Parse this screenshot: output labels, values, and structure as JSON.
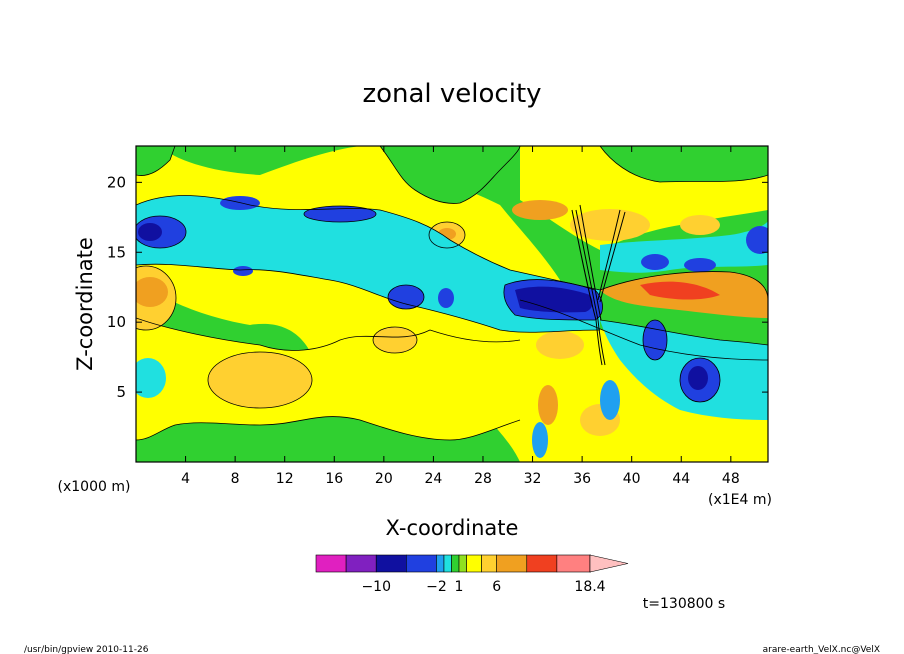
{
  "chart_data": {
    "type": "heatmap",
    "title": "zonal velocity",
    "xlabel": "X-coordinate",
    "ylabel": "Z-coordinate",
    "x_unit_left": "(x1000 m)",
    "x_unit_right": "(x1E4 m)",
    "x_ticks": [
      "4",
      "8",
      "12",
      "16",
      "20",
      "24",
      "28",
      "32",
      "36",
      "40",
      "44",
      "48"
    ],
    "y_ticks": [
      "5",
      "10",
      "15",
      "20"
    ],
    "xlim": [
      0,
      51
    ],
    "ylim": [
      0,
      22.6
    ],
    "colorbar": {
      "levels": [
        -18,
        -14,
        -10,
        -6,
        -2,
        -1,
        0,
        1,
        2,
        4,
        6,
        10,
        14,
        18.4
      ],
      "colors": [
        "#e020c0",
        "#8020c0",
        "#1010a0",
        "#2040e0",
        "#20a0f0",
        "#20e0e0",
        "#30d030",
        "#90e020",
        "#ffff00",
        "#ffd030",
        "#f0a020",
        "#f04020",
        "#ff8080",
        "#ffc0c0"
      ],
      "labels": [
        "-10",
        "-2",
        "1",
        "6",
        "18.4"
      ]
    },
    "features": [
      {
        "x": 37.5,
        "z": 12.2,
        "u": -14,
        "kind": "negative core"
      },
      {
        "x": 44.5,
        "z": 12.0,
        "u": 10,
        "kind": "positive core"
      },
      {
        "x": 0.5,
        "z": 16.8,
        "u": -10,
        "kind": "negative core"
      },
      {
        "x": 47.5,
        "z": 6.0,
        "u": -10,
        "kind": "negative core"
      },
      {
        "x": 8.5,
        "z": 6.2,
        "u": 4,
        "kind": "positive core"
      },
      {
        "x": 1.0,
        "z": 12.5,
        "u": 4,
        "kind": "positive core"
      }
    ]
  },
  "time_label": "t=130800 s",
  "footer_left": "/usr/bin/gpview  2010-11-26",
  "footer_right": "arare-earth_VelX.nc@VelX"
}
